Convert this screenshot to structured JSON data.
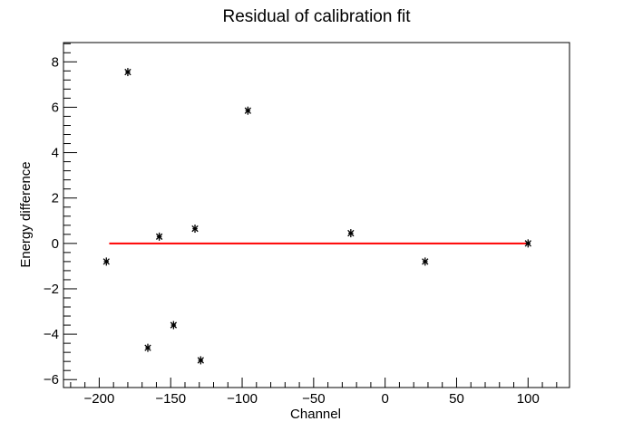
{
  "chart_data": {
    "type": "scatter",
    "title": "Residual of calibration fit",
    "xlabel": "Channel",
    "ylabel": "Energy difference",
    "xlim": [
      -225,
      129
    ],
    "ylim": [
      -6.35,
      8.85
    ],
    "x_ticks": [
      -200,
      -150,
      -100,
      -50,
      0,
      50,
      100
    ],
    "x_tick_labels": [
      "−200",
      "−150",
      "−100",
      "−50",
      "0",
      "50",
      "100"
    ],
    "y_ticks": [
      -6,
      -4,
      -2,
      0,
      2,
      4,
      6,
      8
    ],
    "y_tick_labels": [
      "−6",
      "−4",
      "−2",
      "0",
      "2",
      "4",
      "6",
      "8"
    ],
    "grid": false,
    "marker": "asterisk",
    "points": [
      {
        "x": -195,
        "y": -0.8
      },
      {
        "x": -180,
        "y": 7.55
      },
      {
        "x": -166,
        "y": -4.6
      },
      {
        "x": -158,
        "y": 0.3
      },
      {
        "x": -148,
        "y": -3.6
      },
      {
        "x": -133,
        "y": 0.65
      },
      {
        "x": -129,
        "y": -5.15
      },
      {
        "x": -96,
        "y": 5.85
      },
      {
        "x": -24,
        "y": 0.45
      },
      {
        "x": 28,
        "y": -0.8
      },
      {
        "x": 100,
        "y": 0.0
      }
    ],
    "reference_line": {
      "x": [
        -193,
        100
      ],
      "y": 0,
      "color": "#ff0000"
    }
  }
}
